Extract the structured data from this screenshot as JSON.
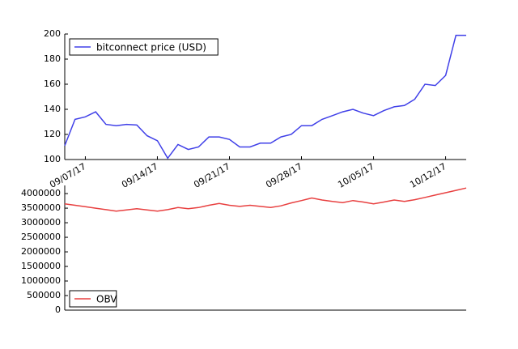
{
  "chart_data": [
    {
      "type": "line",
      "x": [
        "2017-09-05",
        "2017-09-06",
        "2017-09-07",
        "2017-09-08",
        "2017-09-09",
        "2017-09-10",
        "2017-09-11",
        "2017-09-12",
        "2017-09-13",
        "2017-09-14",
        "2017-09-15",
        "2017-09-16",
        "2017-09-17",
        "2017-09-18",
        "2017-09-19",
        "2017-09-20",
        "2017-09-21",
        "2017-09-22",
        "2017-09-23",
        "2017-09-24",
        "2017-09-25",
        "2017-09-26",
        "2017-09-27",
        "2017-09-28",
        "2017-09-29",
        "2017-09-30",
        "2017-10-01",
        "2017-10-02",
        "2017-10-03",
        "2017-10-04",
        "2017-10-05",
        "2017-10-06",
        "2017-10-07",
        "2017-10-08",
        "2017-10-09",
        "2017-10-10",
        "2017-10-11",
        "2017-10-12",
        "2017-10-13",
        "2017-10-14"
      ],
      "series": [
        {
          "name": "bitconnect price (USD)",
          "color": "#4040e8",
          "values": [
            111,
            132,
            134,
            138,
            128,
            127,
            128,
            127.5,
            119,
            115,
            101,
            112,
            108,
            110,
            118,
            118,
            116,
            110,
            110,
            113,
            113,
            118,
            120,
            127,
            127,
            132,
            135,
            138,
            140,
            137,
            135,
            139,
            142,
            143,
            148,
            160,
            159,
            167,
            199,
            199
          ]
        }
      ],
      "xlim": [
        "2017-09-05",
        "2017-10-14"
      ],
      "xticks": [
        {
          "value": "2017-09-07",
          "label": "09/07/17"
        },
        {
          "value": "2017-09-14",
          "label": "09/14/17"
        },
        {
          "value": "2017-09-21",
          "label": "09/21/17"
        },
        {
          "value": "2017-09-28",
          "label": "09/28/17"
        },
        {
          "value": "2017-10-05",
          "label": "10/05/17"
        },
        {
          "value": "2017-10-12",
          "label": "10/12/17"
        }
      ],
      "ylim": [
        100,
        200
      ],
      "yticks": [
        100,
        120,
        140,
        160,
        180,
        200
      ],
      "legend": "upper left"
    },
    {
      "type": "line",
      "x": [
        "2017-09-05",
        "2017-09-06",
        "2017-09-07",
        "2017-09-08",
        "2017-09-09",
        "2017-09-10",
        "2017-09-11",
        "2017-09-12",
        "2017-09-13",
        "2017-09-14",
        "2017-09-15",
        "2017-09-16",
        "2017-09-17",
        "2017-09-18",
        "2017-09-19",
        "2017-09-20",
        "2017-09-21",
        "2017-09-22",
        "2017-09-23",
        "2017-09-24",
        "2017-09-25",
        "2017-09-26",
        "2017-09-27",
        "2017-09-28",
        "2017-09-29",
        "2017-09-30",
        "2017-10-01",
        "2017-10-02",
        "2017-10-03",
        "2017-10-04",
        "2017-10-05",
        "2017-10-06",
        "2017-10-07",
        "2017-10-08",
        "2017-10-09",
        "2017-10-10",
        "2017-10-11",
        "2017-10-12",
        "2017-10-13",
        "2017-10-14"
      ],
      "series": [
        {
          "name": "OBV",
          "color": "#e84040",
          "values": [
            3650000,
            3600000,
            3550000,
            3500000,
            3450000,
            3400000,
            3440000,
            3480000,
            3440000,
            3400000,
            3450000,
            3520000,
            3480000,
            3520000,
            3600000,
            3660000,
            3600000,
            3560000,
            3600000,
            3560000,
            3520000,
            3580000,
            3680000,
            3760000,
            3850000,
            3780000,
            3730000,
            3690000,
            3760000,
            3710000,
            3650000,
            3710000,
            3780000,
            3730000,
            3790000,
            3870000,
            3950000,
            4030000,
            4110000,
            4190000
          ]
        }
      ],
      "xlim": [
        "2017-09-05",
        "2017-10-14"
      ],
      "ylim": [
        0,
        4280000
      ],
      "yticks": [
        0,
        500000,
        1000000,
        1500000,
        2000000,
        2500000,
        3000000,
        3500000,
        4000000
      ],
      "legend": "lower left"
    }
  ]
}
